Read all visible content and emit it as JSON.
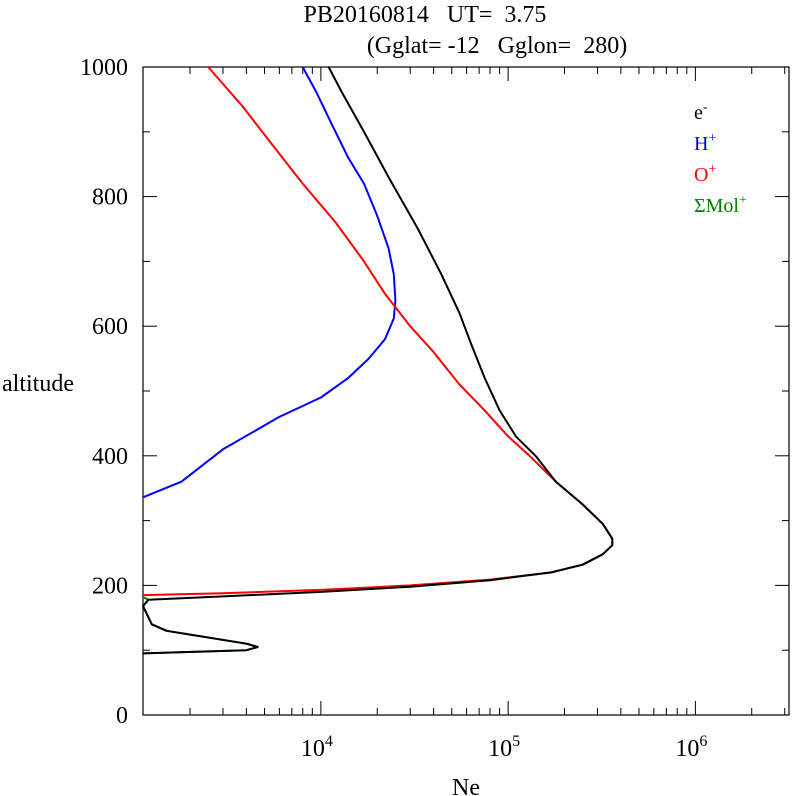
{
  "chart_data": {
    "type": "line",
    "title_line1": "PB20160814   UT=  3.75",
    "title_line2": "(Gglat= -12   Gglon=  280)",
    "xlabel": "Ne",
    "ylabel": "altitude",
    "x_scale": "log",
    "xlim": [
      1122,
      3162278
    ],
    "ylim": [
      0,
      1000
    ],
    "x_ticks": [
      {
        "value": 10000,
        "base": "10",
        "exp": "4"
      },
      {
        "value": 100000,
        "base": "10",
        "exp": "5"
      },
      {
        "value": 1000000,
        "base": "10",
        "exp": "6"
      }
    ],
    "y_ticks": [
      {
        "value": 0,
        "label": "0"
      },
      {
        "value": 200,
        "label": "200"
      },
      {
        "value": 400,
        "label": "400"
      },
      {
        "value": 600,
        "label": "600"
      },
      {
        "value": 800,
        "label": "800"
      },
      {
        "value": 1000,
        "label": "1000"
      }
    ],
    "grid": false,
    "legend_position": "top-right",
    "series": [
      {
        "name": "ΣMol",
        "sup": "+",
        "color": "#008000",
        "points": [
          [
            1122,
            95
          ],
          [
            4000,
            100
          ],
          [
            4600,
            105
          ],
          [
            4000,
            110
          ],
          [
            1500,
            130
          ],
          [
            1250,
            140
          ],
          [
            1122,
            168
          ],
          [
            1200,
            178
          ],
          [
            1122,
            182
          ]
        ]
      },
      {
        "name": "H",
        "sup": "+",
        "color": "#0000ff",
        "points": [
          [
            1122,
            336
          ],
          [
            1800,
            360
          ],
          [
            3000,
            410
          ],
          [
            6000,
            460
          ],
          [
            10000,
            490
          ],
          [
            14000,
            520
          ],
          [
            18000,
            550
          ],
          [
            22000,
            580
          ],
          [
            24500,
            612
          ],
          [
            25000,
            640
          ],
          [
            24500,
            680
          ],
          [
            23000,
            720
          ],
          [
            20000,
            770
          ],
          [
            17000,
            820
          ],
          [
            14000,
            860
          ],
          [
            11500,
            910
          ],
          [
            9500,
            960
          ],
          [
            8000,
            1000
          ]
        ]
      },
      {
        "name": "O",
        "sup": "+",
        "color": "#ff0000",
        "points": [
          [
            1122,
            185
          ],
          [
            3000,
            188
          ],
          [
            10000,
            193
          ],
          [
            30000,
            200
          ],
          [
            80000,
            209
          ],
          [
            170000,
            220
          ],
          [
            250000,
            232
          ],
          [
            320000,
            248
          ],
          [
            360000,
            262
          ],
          [
            360000,
            272
          ],
          [
            320000,
            295
          ],
          [
            250000,
            325
          ],
          [
            180000,
            360
          ],
          [
            130000,
            400
          ],
          [
            100000,
            430
          ],
          [
            75000,
            470
          ],
          [
            55000,
            510
          ],
          [
            40000,
            560
          ],
          [
            30000,
            600
          ],
          [
            22000,
            650
          ],
          [
            17000,
            700
          ],
          [
            12000,
            760
          ],
          [
            8000,
            820
          ],
          [
            5500,
            880
          ],
          [
            3800,
            940
          ],
          [
            2500,
            1000
          ]
        ]
      },
      {
        "name": "e",
        "sup": "-",
        "color": "#000000",
        "points": [
          [
            1122,
            95
          ],
          [
            4000,
            100
          ],
          [
            4600,
            105
          ],
          [
            4000,
            110
          ],
          [
            1500,
            130
          ],
          [
            1250,
            140
          ],
          [
            1122,
            168
          ],
          [
            1200,
            178
          ],
          [
            3000,
            183
          ],
          [
            10000,
            190
          ],
          [
            30000,
            198
          ],
          [
            80000,
            208
          ],
          [
            170000,
            220
          ],
          [
            250000,
            232
          ],
          [
            320000,
            248
          ],
          [
            360000,
            262
          ],
          [
            360000,
            272
          ],
          [
            320000,
            295
          ],
          [
            250000,
            325
          ],
          [
            180000,
            360
          ],
          [
            140000,
            400
          ],
          [
            110000,
            430
          ],
          [
            90000,
            470
          ],
          [
            75000,
            520
          ],
          [
            64000,
            570
          ],
          [
            55000,
            620
          ],
          [
            44000,
            680
          ],
          [
            33000,
            750
          ],
          [
            23000,
            830
          ],
          [
            17000,
            900
          ],
          [
            13000,
            960
          ],
          [
            11000,
            1000
          ]
        ]
      }
    ]
  }
}
